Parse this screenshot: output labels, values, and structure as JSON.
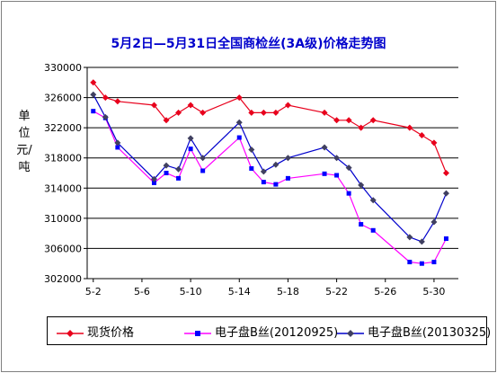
{
  "chart_data": {
    "type": "line",
    "title": "5月2日—5月31日全国商检丝(3A级)价格走势图",
    "ylabel": "单位  元/吨",
    "ylim": [
      302000,
      330000
    ],
    "yticks": [
      302000,
      306000,
      310000,
      314000,
      318000,
      322000,
      326000,
      330000
    ],
    "x_tick_labels": [
      "5-2",
      "5-6",
      "5-10",
      "5-14",
      "5-18",
      "5-22",
      "5-26",
      "5-30"
    ],
    "x_tick_days": [
      2,
      6,
      10,
      14,
      18,
      22,
      26,
      30
    ],
    "grid": "horizontal",
    "legend_position": "bottom",
    "series": [
      {
        "name": "现货价格",
        "color": "#e8001c",
        "marker": "diamond",
        "x": [
          2,
          3,
          4,
          7,
          8,
          9,
          10,
          11,
          14,
          15,
          16,
          17,
          18,
          21,
          22,
          23,
          24,
          25,
          28,
          29,
          30,
          31
        ],
        "values": [
          328000,
          326000,
          325500,
          325000,
          323000,
          324000,
          325000,
          324000,
          326000,
          324000,
          324000,
          324000,
          325000,
          324000,
          323000,
          323000,
          322000,
          323000,
          322000,
          321000,
          320000,
          316000
        ]
      },
      {
        "name": "电子盘B丝(20120925)",
        "color": "#ff00ff",
        "line_color": "#ff00ff",
        "marker_color": "#0000ff",
        "marker": "square",
        "x": [
          2,
          3,
          4,
          7,
          8,
          9,
          10,
          11,
          14,
          15,
          16,
          17,
          18,
          21,
          22,
          23,
          24,
          25,
          28,
          29,
          30,
          31
        ],
        "values": [
          324200,
          323300,
          319400,
          314700,
          316000,
          315300,
          319200,
          316300,
          320700,
          316600,
          314800,
          314500,
          315300,
          315900,
          315700,
          313300,
          309200,
          308400,
          304200,
          304000,
          304200,
          307300
        ]
      },
      {
        "name": "电子盘B丝(20130325)",
        "color": "#0000cc",
        "line_color": "#0000cc",
        "marker_color": "#404060",
        "marker": "diamond",
        "x": [
          2,
          3,
          4,
          7,
          8,
          9,
          10,
          11,
          14,
          15,
          16,
          17,
          18,
          21,
          22,
          23,
          24,
          25,
          28,
          29,
          30,
          31
        ],
        "values": [
          326400,
          323400,
          320000,
          315200,
          317000,
          316500,
          320600,
          318000,
          322700,
          319100,
          316200,
          317100,
          318000,
          319400,
          318000,
          316700,
          314400,
          312400,
          307500,
          306900,
          309500,
          313300
        ]
      }
    ]
  }
}
